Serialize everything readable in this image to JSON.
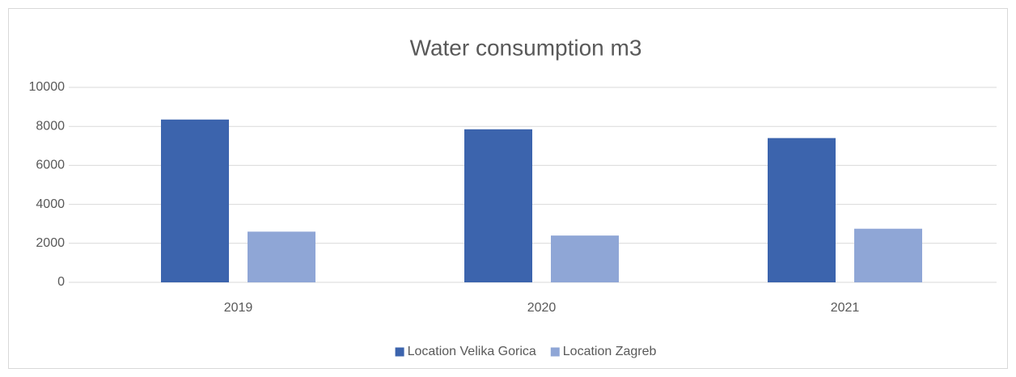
{
  "chart_data": {
    "type": "bar",
    "title": "Water consumption m3",
    "categories": [
      "2019",
      "2020",
      "2021"
    ],
    "series": [
      {
        "name": "Location Velika Gorica",
        "color": "#3c64ad",
        "values": [
          8350,
          7850,
          7400
        ]
      },
      {
        "name": "Location Zagreb",
        "color": "#8fa6d6",
        "values": [
          2600,
          2400,
          2750
        ]
      }
    ],
    "ylim": [
      0,
      10000
    ],
    "yticks": [
      0,
      2000,
      4000,
      6000,
      8000,
      10000
    ],
    "grid": true,
    "legend": "bottom"
  }
}
